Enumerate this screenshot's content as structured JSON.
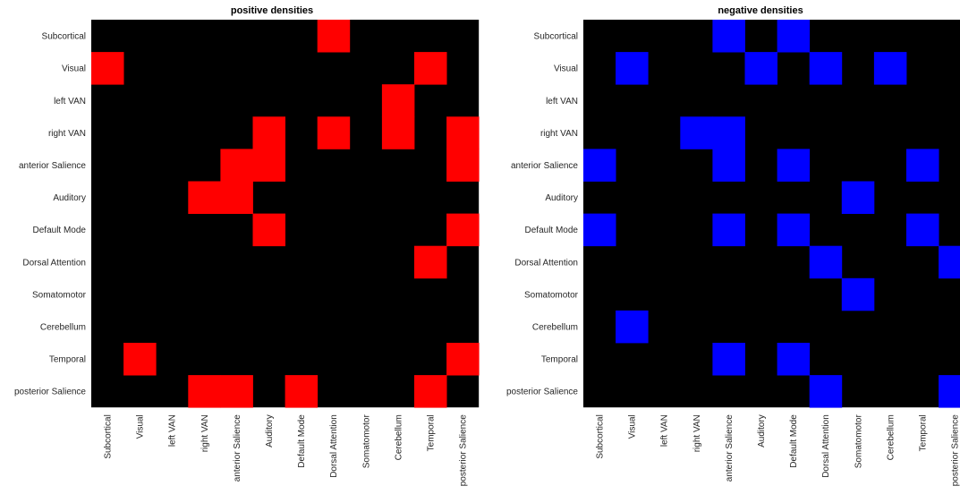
{
  "chart_data": [
    {
      "type": "heatmap",
      "title": "positive densities",
      "colors": {
        "on": "#ff0000",
        "off": "#000000"
      },
      "row_labels": [
        "Subcortical",
        "Visual",
        "left VAN",
        "right VAN",
        "anterior Salience",
        "Auditory",
        "Default Mode",
        "Dorsal Attention",
        "Somatomotor",
        "Cerebellum",
        "Temporal",
        "posterior Salience"
      ],
      "col_labels": [
        "Subcortical",
        "Visual",
        "left VAN",
        "right VAN",
        "anterior Salience",
        "Auditory",
        "Default Mode",
        "Dorsal Attention",
        "Somatomotor",
        "Cerebellum",
        "Temporal",
        "posterior Salience"
      ],
      "values": [
        [
          0,
          0,
          0,
          0,
          0,
          0,
          0,
          1,
          0,
          0,
          0,
          0
        ],
        [
          1,
          0,
          0,
          0,
          0,
          0,
          0,
          0,
          0,
          0,
          1,
          0
        ],
        [
          0,
          0,
          0,
          0,
          0,
          0,
          0,
          0,
          0,
          1,
          0,
          0
        ],
        [
          0,
          0,
          0,
          0,
          0,
          1,
          0,
          1,
          0,
          1,
          0,
          1
        ],
        [
          0,
          0,
          0,
          0,
          1,
          1,
          0,
          0,
          0,
          0,
          0,
          1
        ],
        [
          0,
          0,
          0,
          1,
          1,
          0,
          0,
          0,
          0,
          0,
          0,
          0
        ],
        [
          0,
          0,
          0,
          0,
          0,
          1,
          0,
          0,
          0,
          0,
          0,
          1
        ],
        [
          0,
          0,
          0,
          0,
          0,
          0,
          0,
          0,
          0,
          0,
          1,
          0
        ],
        [
          0,
          0,
          0,
          0,
          0,
          0,
          0,
          0,
          0,
          0,
          0,
          0
        ],
        [
          0,
          0,
          0,
          0,
          0,
          0,
          0,
          0,
          0,
          0,
          0,
          0
        ],
        [
          0,
          1,
          0,
          0,
          0,
          0,
          0,
          0,
          0,
          0,
          0,
          1
        ],
        [
          0,
          0,
          0,
          1,
          1,
          0,
          1,
          0,
          0,
          0,
          1,
          0
        ]
      ],
      "grid": false
    },
    {
      "type": "heatmap",
      "title": "negative densities",
      "colors": {
        "on": "#0000ff",
        "off": "#000000"
      },
      "row_labels": [
        "Subcortical",
        "Visual",
        "left VAN",
        "right VAN",
        "anterior Salience",
        "Auditory",
        "Default Mode",
        "Dorsal Attention",
        "Somatomotor",
        "Cerebellum",
        "Temporal",
        "posterior Salience"
      ],
      "col_labels": [
        "Subcortical",
        "Visual",
        "left VAN",
        "right VAN",
        "anterior Salience",
        "Auditory",
        "Default Mode",
        "Dorsal Attention",
        "Somatomotor",
        "Cerebellum",
        "Temporal",
        "posterior Salience"
      ],
      "values": [
        [
          0,
          0,
          0,
          0,
          1,
          0,
          1,
          0,
          0,
          0,
          0,
          0
        ],
        [
          0,
          1,
          0,
          0,
          0,
          1,
          0,
          1,
          0,
          1,
          0,
          0
        ],
        [
          0,
          0,
          0,
          0,
          0,
          0,
          0,
          0,
          0,
          0,
          0,
          0
        ],
        [
          0,
          0,
          0,
          1,
          1,
          0,
          0,
          0,
          0,
          0,
          0,
          0
        ],
        [
          1,
          0,
          0,
          0,
          1,
          0,
          1,
          0,
          0,
          0,
          1,
          0
        ],
        [
          0,
          0,
          0,
          0,
          0,
          0,
          0,
          0,
          1,
          0,
          0,
          0
        ],
        [
          1,
          0,
          0,
          0,
          1,
          0,
          1,
          0,
          0,
          0,
          1,
          0
        ],
        [
          0,
          0,
          0,
          0,
          0,
          0,
          0,
          1,
          0,
          0,
          0,
          1
        ],
        [
          0,
          0,
          0,
          0,
          0,
          0,
          0,
          0,
          1,
          0,
          0,
          0
        ],
        [
          0,
          1,
          0,
          0,
          0,
          0,
          0,
          0,
          0,
          0,
          0,
          0
        ],
        [
          0,
          0,
          0,
          0,
          1,
          0,
          1,
          0,
          0,
          0,
          0,
          0
        ],
        [
          0,
          0,
          0,
          0,
          0,
          0,
          0,
          1,
          0,
          0,
          0,
          1
        ]
      ],
      "grid": false
    }
  ]
}
